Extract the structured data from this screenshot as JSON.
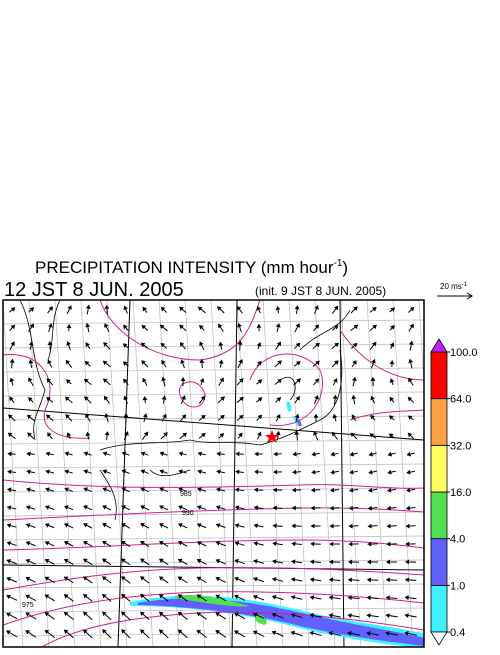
{
  "header": {
    "title": "PRECIPITATION INTENSITY (mm hour",
    "title_superscript": "-1",
    "title_close": ")",
    "time": "12 JST 8 JUN. 2005",
    "init": "(init. 9 JST 8 JUN. 2005)"
  },
  "vector_legend": {
    "label": "20 ms",
    "superscript": "-1"
  },
  "map_labels": [
    "985",
    "990",
    "975"
  ],
  "colorbar": {
    "ticks": [
      {
        "value": 0.4,
        "label": "0.4"
      },
      {
        "value": 1,
        "label": "1.0"
      },
      {
        "value": 4,
        "label": "4.0"
      },
      {
        "value": 16,
        "label": "16.0"
      },
      {
        "value": 32,
        "label": "32.0"
      },
      {
        "value": 64,
        "label": "64.0"
      },
      {
        "value": 100,
        "label": "100.0"
      }
    ],
    "colors": [
      "#40f0ff",
      "#6060ff",
      "#50e050",
      "#ffff60",
      "#ffa040",
      "#ff0000"
    ],
    "over_color": "#c020ff",
    "under_color": "#ffffff"
  }
}
